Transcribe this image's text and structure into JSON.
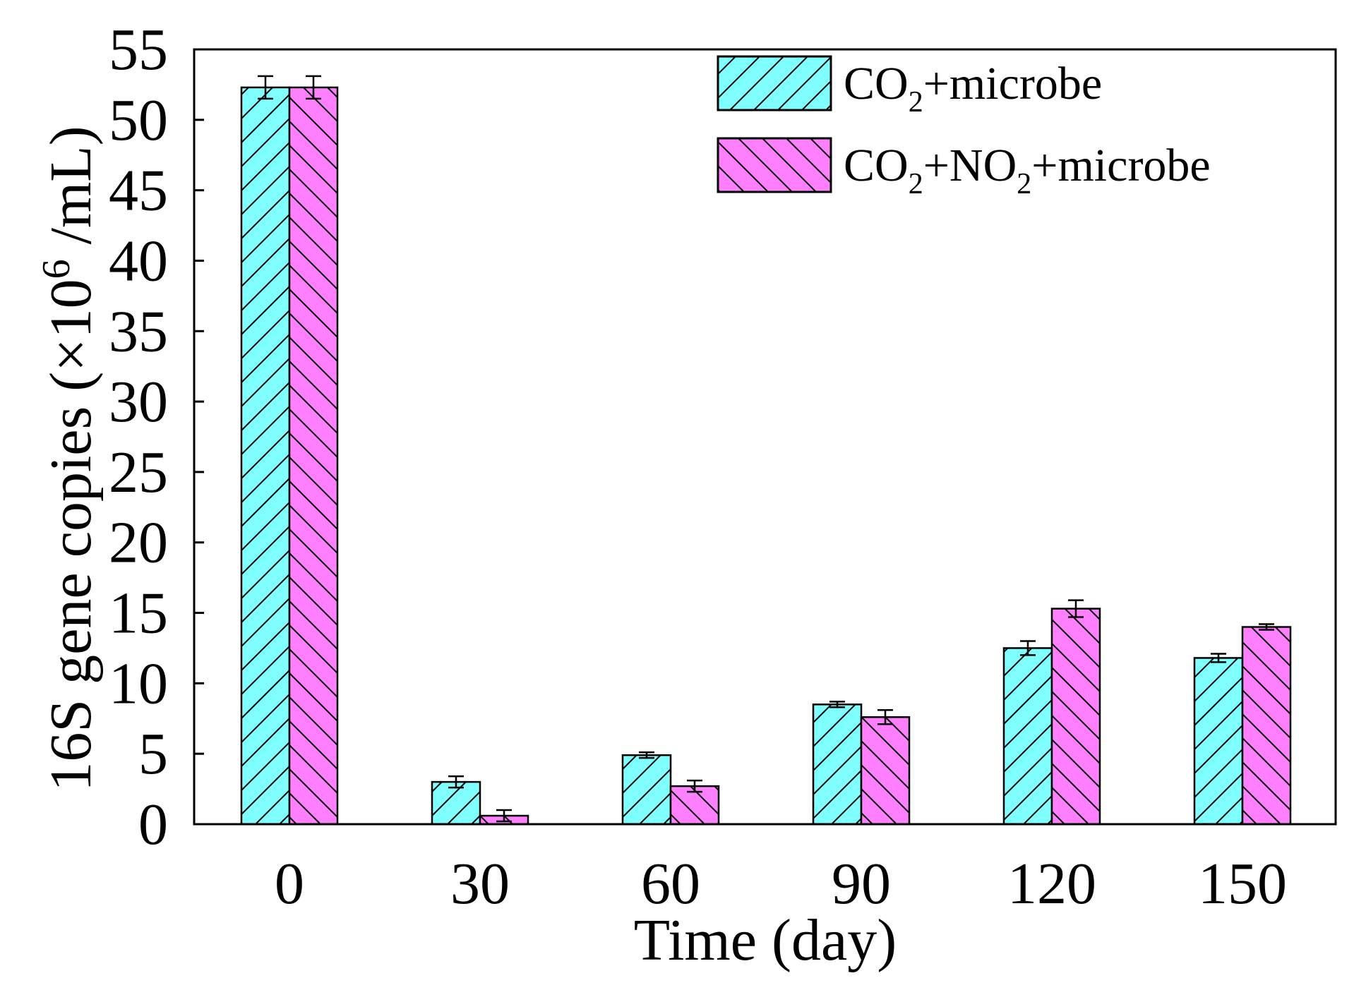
{
  "colors": {
    "series1_fill": "#80FFFF",
    "series2_fill": "#FF80FF",
    "stroke": "#000000"
  },
  "chart_data": {
    "type": "bar",
    "xlabel": "Time (day)",
    "ylabel": {
      "prefix": "16S gene copies (×10",
      "superscript": "6",
      "suffix": " /mL)"
    },
    "ylim": [
      0,
      55
    ],
    "yticks": [
      "0",
      "5",
      "10",
      "15",
      "20",
      "25",
      "30",
      "35",
      "40",
      "45",
      "50",
      "55"
    ],
    "categories": [
      "0",
      "30",
      "60",
      "90",
      "120",
      "150"
    ],
    "legend_position": "top-right",
    "grid": false,
    "series": [
      {
        "name": "CO2+microbe",
        "legend_parts": [
          "CO",
          "2",
          "+microbe"
        ],
        "values": [
          52.3,
          3.0,
          4.9,
          8.5,
          12.5,
          11.8
        ],
        "errors": [
          0.8,
          0.4,
          0.2,
          0.2,
          0.5,
          0.3
        ],
        "hatch": "forward"
      },
      {
        "name": "CO2+NO2+microbe",
        "legend_parts": [
          "CO",
          "2",
          "+NO",
          "2",
          "+microbe"
        ],
        "values": [
          52.3,
          0.6,
          2.7,
          7.6,
          15.3,
          14.0
        ],
        "errors": [
          0.8,
          0.4,
          0.4,
          0.5,
          0.6,
          0.2
        ],
        "hatch": "backward"
      }
    ]
  }
}
